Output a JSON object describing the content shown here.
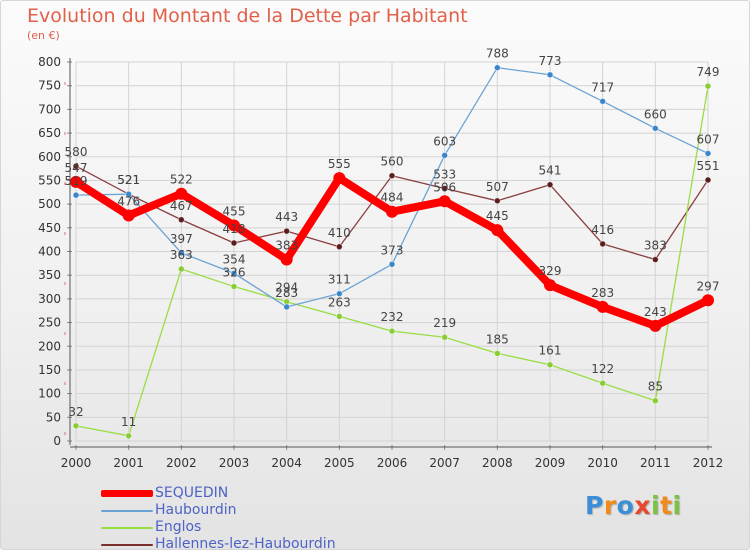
{
  "title": "Evolution du Montant de la Dette par Habitant",
  "subtitle": "(en €)",
  "chart_data": {
    "type": "line",
    "title": "Evolution du Montant de la Dette par Habitant",
    "subtitle": "(en €)",
    "xlabel": "",
    "ylabel": "",
    "categories": [
      "2000",
      "2001",
      "2002",
      "2003",
      "2004",
      "2005",
      "2006",
      "2007",
      "2008",
      "2009",
      "2010",
      "2011",
      "2012"
    ],
    "ylim": [
      0,
      800
    ],
    "yticks": [
      0,
      50,
      100,
      150,
      200,
      250,
      300,
      350,
      400,
      450,
      500,
      550,
      600,
      650,
      700,
      750,
      800
    ],
    "grid": true,
    "legend_position": "bottom",
    "series": [
      {
        "name": "SEQUEDIN",
        "color": "#ff0000",
        "values": [
          547,
          476,
          522,
          455,
          383,
          555,
          484,
          506,
          445,
          329,
          283,
          243,
          297
        ]
      },
      {
        "name": "Haubourdin",
        "color": "#6da3d4",
        "values": [
          519,
          521,
          397,
          354,
          283,
          311,
          373,
          603,
          788,
          773,
          717,
          660,
          607
        ]
      },
      {
        "name": "Englos",
        "color": "#99dd44",
        "values": [
          32,
          11,
          363,
          326,
          294,
          263,
          232,
          219,
          185,
          161,
          122,
          85,
          749
        ]
      },
      {
        "name": "Hallennes-lez-Haubourdin",
        "color": "#7a2e2e",
        "values": [
          580,
          521,
          467,
          418,
          443,
          410,
          560,
          533,
          507,
          541,
          416,
          383,
          551
        ]
      }
    ]
  },
  "logo": {
    "text": "Proxiti",
    "letters": [
      "P",
      "r",
      "o",
      "x",
      "i",
      "t",
      "i"
    ],
    "colors": [
      "#3a8fd6",
      "#f08a1c",
      "#3a8fd6",
      "#e8462e",
      "#7cc242",
      "#f08a1c",
      "#7cc242"
    ]
  }
}
